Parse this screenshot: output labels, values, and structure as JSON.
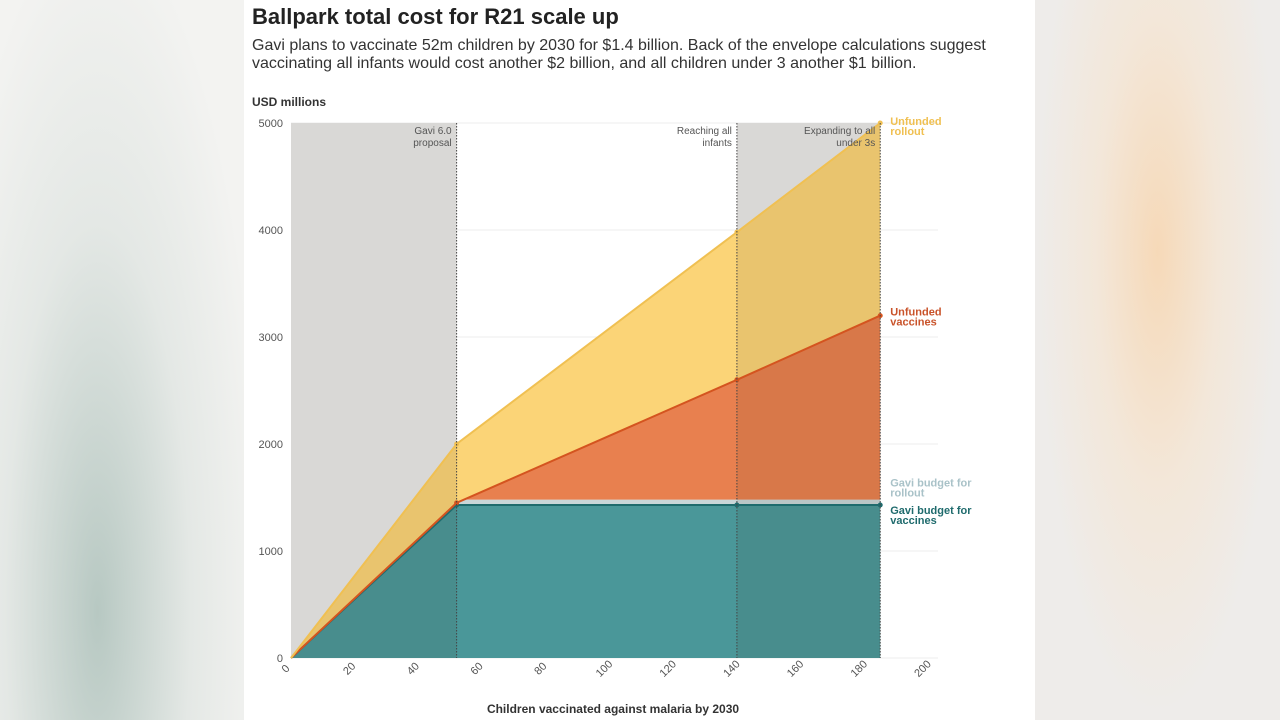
{
  "title": "Ballpark total cost for R21 scale up",
  "subtitle": "Gavi plans to vaccinate 52m children by 2030 for $1.4 billion. Back of the envelope calculations suggest vaccinating all infants would cost another $2 billion, and all children under 3 another $1 billion.",
  "chart_data": {
    "type": "area",
    "stacked": true,
    "ylabel": "USD millions",
    "xlabel": "Children vaccinated against malaria by 2030",
    "xlim": [
      0,
      200
    ],
    "ylim": [
      0,
      5000
    ],
    "xticks": [
      "0",
      "20",
      "40",
      "60",
      "80",
      "100",
      "120",
      "140",
      "160",
      "180",
      "200"
    ],
    "yticks": [
      "0",
      "1000",
      "2000",
      "3000",
      "4000",
      "5000"
    ],
    "grid": true,
    "x": [
      0,
      52,
      140,
      185
    ],
    "series": [
      {
        "name": "Gavi budget for vaccines",
        "color": "#4a9799",
        "values": [
          0,
          1430,
          1430,
          1430
        ]
      },
      {
        "name": "Gavi budget for rollout",
        "color": "#c9d6d8",
        "values": [
          0,
          50,
          50,
          50
        ]
      },
      {
        "name": "Unfunded vaccines",
        "color": "#e8804f",
        "values": [
          0,
          -30,
          1120,
          1720
        ]
      },
      {
        "name": "Unfunded rollout",
        "color": "#fbd477",
        "values": [
          0,
          550,
          1380,
          1800
        ]
      }
    ],
    "series_label_lines": [
      [
        "Gavi budget for",
        "vaccines"
      ],
      [
        "Gavi budget for",
        "rollout"
      ],
      [
        "Unfunded",
        "vaccines"
      ],
      [
        "Unfunded",
        "rollout"
      ]
    ],
    "label_colors": [
      "#1f6b6d",
      "#a9c2c8",
      "#c9532a",
      "#f0c052"
    ],
    "annotations": [
      {
        "x": 52,
        "lines": [
          "Gavi 6.0",
          "proposal"
        ]
      },
      {
        "x": 140,
        "lines": [
          "Reaching all",
          "infants"
        ]
      },
      {
        "x": 185,
        "lines": [
          "Expanding to all",
          "under 3s"
        ]
      }
    ],
    "shaded_ranges": [
      [
        0,
        52
      ],
      [
        140,
        185
      ]
    ]
  }
}
